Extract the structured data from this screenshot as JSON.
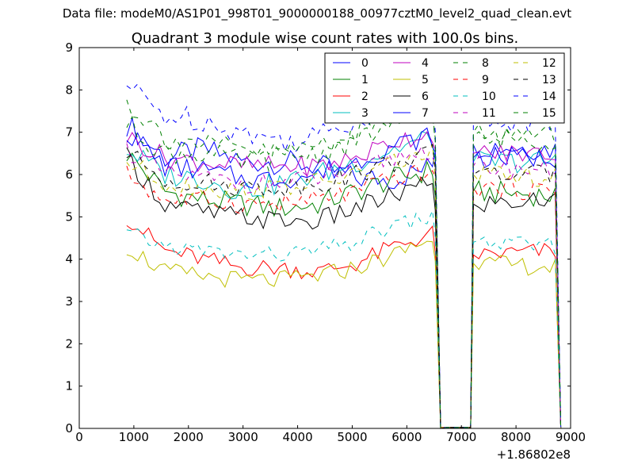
{
  "figure": {
    "suptitle": "Data file: modeM0/AS1P01_998T01_9000000188_00977cztM0_level2_quad_clean.evt"
  },
  "chart_data": {
    "type": "line",
    "title": "Quadrant 3 module wise count rates with 100.0s bins.",
    "xlabel": "",
    "ylabel": "",
    "x_offset_label": "+1.86802e8",
    "xlim": [
      0,
      9000
    ],
    "ylim": [
      0,
      9
    ],
    "xticks": [
      0,
      1000,
      2000,
      3000,
      4000,
      5000,
      6000,
      7000,
      8000,
      9000
    ],
    "yticks": [
      0,
      1,
      2,
      3,
      4,
      5,
      6,
      7,
      8,
      9
    ],
    "legend_loc": "top-right",
    "segments": [
      {
        "x_start": 870,
        "x_end": 6470,
        "dx": 100
      },
      {
        "x_start": 6520,
        "x_end": 6720,
        "dx": 100
      },
      {
        "x_start": 7070,
        "x_end": 7170,
        "dx": 100
      },
      {
        "x_start": 7220,
        "x_end": 8820,
        "dx": 100
      }
    ],
    "series": [
      {
        "name": "0",
        "color": "#0000ff",
        "dash": "solid",
        "base": [
          7.2,
          6.4,
          6.6,
          6.3,
          6.3,
          6.2,
          5.9,
          5.9,
          6.2,
          6.7,
          6.6
        ],
        "noise": 0.3
      },
      {
        "name": "1",
        "color": "#008000",
        "dash": "solid",
        "base": [
          6.5,
          5.6,
          5.4,
          5.3,
          5.2,
          5.3,
          5.6,
          5.9,
          6.1,
          5.6,
          5.5
        ],
        "noise": 0.28
      },
      {
        "name": "2",
        "color": "#ff0000",
        "dash": "solid",
        "base": [
          5.0,
          4.2,
          4.0,
          3.8,
          3.8,
          3.7,
          3.9,
          4.3,
          4.6,
          4.1,
          4.2
        ],
        "noise": 0.22
      },
      {
        "name": "3",
        "color": "#00bfbf",
        "dash": "solid",
        "base": [
          6.6,
          6.0,
          5.9,
          5.6,
          5.8,
          6.0,
          6.3,
          6.6,
          6.9,
          6.3,
          6.3
        ],
        "noise": 0.28
      },
      {
        "name": "4",
        "color": "#bf00bf",
        "dash": "solid",
        "base": [
          6.9,
          6.4,
          6.3,
          6.2,
          6.2,
          6.2,
          6.4,
          6.8,
          7.0,
          6.5,
          6.5
        ],
        "noise": 0.25
      },
      {
        "name": "5",
        "color": "#bfbf00",
        "dash": "solid",
        "base": [
          4.3,
          3.7,
          3.6,
          3.5,
          3.5,
          3.6,
          3.8,
          4.1,
          4.5,
          3.9,
          3.8
        ],
        "noise": 0.22
      },
      {
        "name": "6",
        "color": "#000000",
        "dash": "solid",
        "base": [
          6.4,
          5.3,
          5.1,
          5.0,
          4.9,
          4.9,
          5.2,
          5.5,
          5.8,
          5.3,
          5.4
        ],
        "noise": 0.25
      },
      {
        "name": "7",
        "color": "#0000ff",
        "dash": "solid",
        "base": [
          7.0,
          6.2,
          6.1,
          5.9,
          5.9,
          6.0,
          6.3,
          6.7,
          6.9,
          6.4,
          6.4
        ],
        "noise": 0.26
      },
      {
        "name": "8",
        "color": "#008000",
        "dash": "dashed",
        "base": [
          7.2,
          6.5,
          6.5,
          6.3,
          6.4,
          6.5,
          6.8,
          7.2,
          7.4,
          6.9,
          6.8
        ],
        "noise": 0.28
      },
      {
        "name": "9",
        "color": "#ff0000",
        "dash": "dashed",
        "base": [
          6.0,
          5.4,
          5.4,
          5.3,
          5.3,
          5.4,
          5.6,
          5.9,
          6.1,
          5.7,
          5.6
        ],
        "noise": 0.24
      },
      {
        "name": "10",
        "color": "#00bfbf",
        "dash": "dashed",
        "base": [
          4.6,
          4.3,
          4.2,
          4.1,
          4.1,
          4.2,
          4.4,
          4.8,
          5.0,
          4.4,
          4.3
        ],
        "noise": 0.2
      },
      {
        "name": "11",
        "color": "#bf00bf",
        "dash": "dashed",
        "base": [
          6.6,
          6.0,
          5.9,
          5.8,
          5.8,
          5.9,
          6.1,
          6.4,
          6.6,
          6.2,
          6.1
        ],
        "noise": 0.24
      },
      {
        "name": "12",
        "color": "#bfbf00",
        "dash": "dashed",
        "base": [
          6.3,
          5.8,
          5.7,
          5.6,
          5.7,
          5.8,
          6.0,
          6.3,
          6.5,
          6.0,
          5.9
        ],
        "noise": 0.24
      },
      {
        "name": "13",
        "color": "#000000",
        "dash": "dashed",
        "base": [
          6.5,
          5.9,
          5.8,
          5.7,
          5.7,
          5.8,
          6.0,
          6.3,
          6.5,
          6.0,
          6.0
        ],
        "noise": 0.24
      },
      {
        "name": "14",
        "color": "#0000ff",
        "dash": "dashed",
        "base": [
          8.1,
          7.4,
          7.3,
          7.0,
          6.8,
          6.9,
          7.3,
          7.7,
          8.0,
          7.3,
          7.2
        ],
        "noise": 0.3
      },
      {
        "name": "15",
        "color": "#008000",
        "dash": "dashed",
        "base": [
          7.7,
          6.9,
          6.7,
          6.6,
          6.5,
          6.7,
          7.0,
          7.4,
          7.6,
          7.0,
          6.9
        ],
        "noise": 0.28
      }
    ]
  }
}
